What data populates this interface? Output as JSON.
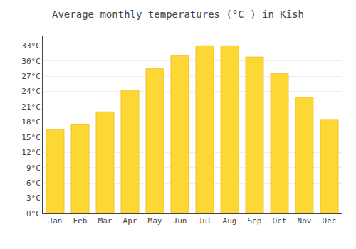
{
  "chart_data": {
    "type": "bar",
    "title": "Average monthly temperatures (°C ) in Kīsh",
    "categories": [
      "Jan",
      "Feb",
      "Mar",
      "Apr",
      "May",
      "Jun",
      "Jul",
      "Aug",
      "Sep",
      "Oct",
      "Nov",
      "Dec"
    ],
    "values": [
      16.5,
      17.5,
      20.0,
      24.2,
      28.5,
      31.0,
      33.0,
      33.0,
      30.8,
      27.5,
      22.8,
      18.5
    ],
    "color": "#FDD835",
    "ylim": [
      0,
      35
    ],
    "yticks": [
      {
        "value": 0,
        "label": "0°C"
      },
      {
        "value": 3,
        "label": "3°C"
      },
      {
        "value": 6,
        "label": "6°C"
      },
      {
        "value": 9,
        "label": "9°C"
      },
      {
        "value": 12,
        "label": "12°C"
      },
      {
        "value": 15,
        "label": "15°C"
      },
      {
        "value": 18,
        "label": "18°C"
      },
      {
        "value": 21,
        "label": "21°C"
      },
      {
        "value": 24,
        "label": "24°C"
      },
      {
        "value": 27,
        "label": "27°C"
      },
      {
        "value": 30,
        "label": "30°C"
      },
      {
        "value": 33,
        "label": "33°C"
      }
    ],
    "grid": true
  }
}
